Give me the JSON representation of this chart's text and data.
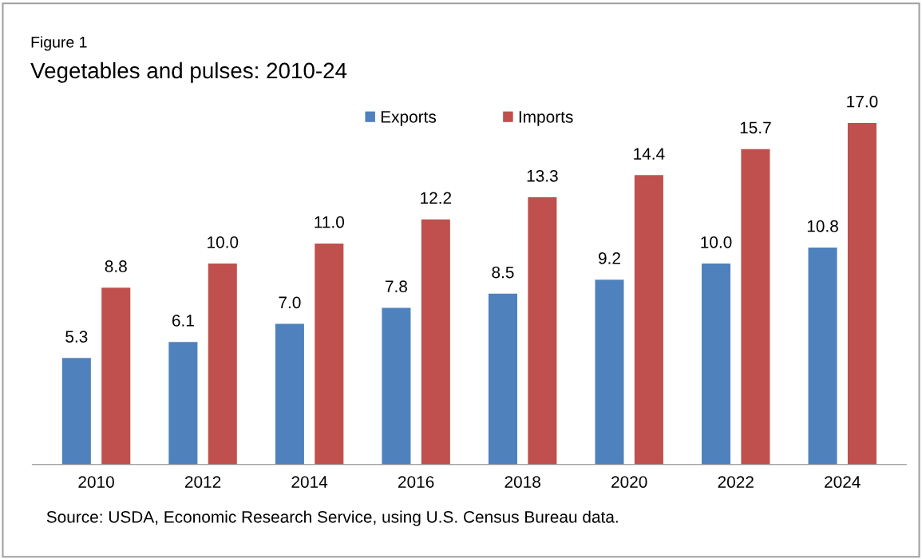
{
  "chart_data": {
    "type": "bar",
    "title": "Vegetables and pulses: 2010-24",
    "subtitle": "Figure 1",
    "categories": [
      "2010",
      "2012",
      "2014",
      "2016",
      "2018",
      "2020",
      "2022",
      "2024"
    ],
    "series": [
      {
        "name": "Exports",
        "color": "#4f81bd",
        "values": [
          5.3,
          6.1,
          7.0,
          7.8,
          8.5,
          9.2,
          10.0,
          10.8
        ],
        "value_labels": [
          "5.3",
          "6.1",
          "7.0",
          "7.8",
          "8.5",
          "9.2",
          "10.0",
          "10.8"
        ]
      },
      {
        "name": "Imports",
        "color": "#c0504d",
        "values": [
          8.8,
          10.0,
          11.0,
          12.2,
          13.3,
          14.4,
          15.7,
          17.0
        ],
        "value_labels": [
          "8.8",
          "10.0",
          "11.0",
          "12.2",
          "13.3",
          "14.4",
          "15.7",
          "17.0"
        ]
      }
    ],
    "tick_labels": "x",
    "legend": "top",
    "grid": false,
    "annotations": [
      "Source: USDA, Economic Research Service, using U.S. Census Bureau data."
    ]
  }
}
